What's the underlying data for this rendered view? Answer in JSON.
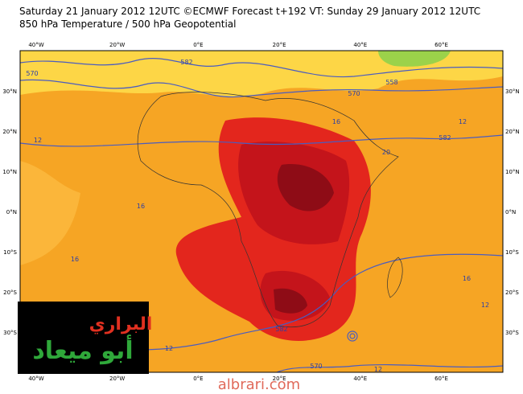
{
  "header": {
    "line1": "Saturday 21 January 2012 12UTC ©ECMWF Forecast t+192 VT: Sunday 29 January 2012 12UTC",
    "line2": "850 hPa Temperature / 500 hPa Geopotential"
  },
  "map": {
    "lon_labels": [
      "40°W",
      "20°W",
      "0°E",
      "20°E",
      "40°E",
      "60°E"
    ],
    "lat_labels": [
      "30°N",
      "20°N",
      "10°N",
      "0°N",
      "10°S",
      "20°S",
      "30°S"
    ],
    "contour_labels": [
      "570",
      "582",
      "558",
      "570",
      "12",
      "12",
      "582",
      "16",
      "16",
      "16",
      "12",
      "12",
      "12",
      "570",
      "582",
      "16",
      "20"
    ]
  },
  "logo": {
    "line1": "البراري",
    "line2": "أبو ميعاد"
  },
  "watermark": "albrari.com"
}
